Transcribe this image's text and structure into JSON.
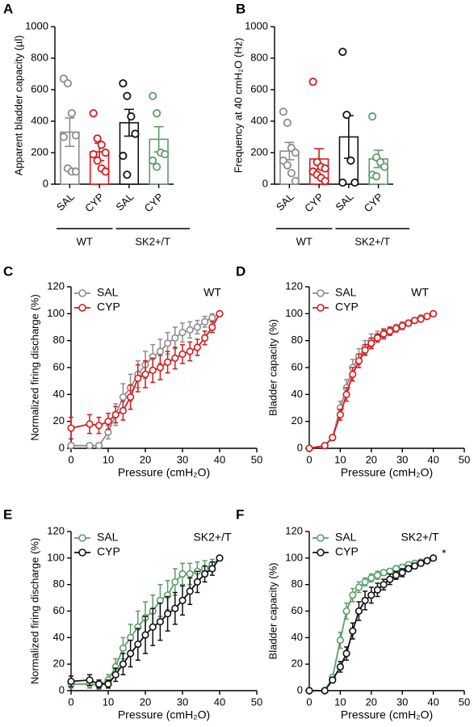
{
  "chart_data": [
    {
      "type": "bar",
      "label": "A",
      "y_label": "Apparent bladder capacity (µl)",
      "categories": [
        "SAL",
        "CYP",
        "SAL",
        "CYP"
      ],
      "groups": [
        "WT",
        "SK2+/T"
      ],
      "values": [
        330,
        205,
        390,
        285
      ],
      "errors": [
        90,
        55,
        85,
        80
      ],
      "colors": [
        "#8c8c8c",
        "#d7191c",
        "#111111",
        "#5a9e6a"
      ],
      "points": [
        [
          670,
          640,
          450,
          310,
          300,
          100,
          80,
          80
        ],
        [
          450,
          290,
          250,
          200,
          190,
          150,
          100,
          80
        ],
        [
          640,
          560,
          430,
          320,
          180,
          60
        ],
        [
          560,
          450,
          200,
          190,
          150,
          110
        ]
      ],
      "ylim": [
        0,
        1000
      ],
      "yticks": [
        0,
        200,
        400,
        600,
        800,
        1000
      ]
    },
    {
      "type": "bar",
      "label": "B",
      "y_label": "Frequency at 40 cmH₂O (Hz)",
      "categories": [
        "SAL",
        "CYP",
        "SAL",
        "CYP"
      ],
      "groups": [
        "WT",
        "SK2+/T"
      ],
      "values": [
        210,
        160,
        300,
        160
      ],
      "errors": [
        55,
        65,
        135,
        55
      ],
      "colors": [
        "#8c8c8c",
        "#d7191c",
        "#111111",
        "#5a9e6a"
      ],
      "points": [
        [
          460,
          390,
          230,
          200,
          150,
          120,
          70,
          20
        ],
        [
          650,
          140,
          110,
          100,
          80,
          60,
          40,
          20
        ],
        [
          840,
          440,
          150,
          10,
          10
        ],
        [
          430,
          170,
          140,
          110,
          60,
          50
        ]
      ],
      "ylim": [
        0,
        1000
      ],
      "yticks": [
        0,
        200,
        400,
        600,
        800,
        1000
      ]
    },
    {
      "type": "line",
      "label": "C",
      "y_label": "Normalized firing discharge (%)",
      "x_label": "Pressure (cmH₂O)",
      "annotations": [
        "WT"
      ],
      "x": [
        0,
        5,
        7.5,
        10,
        12,
        14,
        16,
        18,
        20,
        22,
        24,
        26,
        28,
        30,
        32,
        34,
        36,
        38,
        40
      ],
      "series": [
        {
          "name": "SAL",
          "color": "#8c8c8c",
          "values": [
            2,
            2,
            2,
            12,
            25,
            38,
            45,
            55,
            62,
            68,
            72,
            78,
            82,
            86,
            88,
            90,
            94,
            97,
            100
          ],
          "errors": [
            2,
            2,
            2,
            5,
            8,
            10,
            10,
            10,
            10,
            9,
            9,
            8,
            8,
            7,
            6,
            5,
            4,
            3,
            0
          ]
        },
        {
          "name": "CYP",
          "color": "#d7191c",
          "values": [
            15,
            18,
            17,
            20,
            25,
            28,
            38,
            52,
            55,
            58,
            60,
            64,
            67,
            70,
            72,
            75,
            82,
            90,
            100
          ],
          "errors": [
            8,
            7,
            6,
            6,
            6,
            7,
            9,
            10,
            10,
            9,
            9,
            8,
            8,
            7,
            7,
            6,
            5,
            4,
            0
          ]
        }
      ],
      "xlim": [
        0,
        50
      ],
      "xticks": [
        0,
        10,
        20,
        30,
        40,
        50
      ],
      "ylim": [
        0,
        120
      ],
      "yticks": [
        0,
        20,
        40,
        60,
        80,
        100,
        120
      ]
    },
    {
      "type": "line",
      "label": "D",
      "y_label": "Bladder capacity (%)",
      "x_label": "Pressure (cmH₂O)",
      "annotations": [
        "WT"
      ],
      "x": [
        0,
        5,
        7.5,
        10,
        12,
        14,
        16,
        18,
        20,
        22,
        24,
        26,
        28,
        30,
        32,
        34,
        36,
        38,
        40
      ],
      "series": [
        {
          "name": "SAL",
          "color": "#8c8c8c",
          "values": [
            0,
            2,
            8,
            30,
            45,
            60,
            68,
            75,
            80,
            83,
            85,
            87,
            89,
            91,
            93,
            95,
            97,
            98,
            100
          ],
          "errors": [
            0,
            1,
            2,
            5,
            6,
            6,
            6,
            5,
            5,
            4,
            4,
            3,
            3,
            3,
            2,
            2,
            1,
            1,
            0
          ]
        },
        {
          "name": "CYP",
          "color": "#d7191c",
          "values": [
            0,
            2,
            8,
            25,
            40,
            55,
            65,
            73,
            78,
            82,
            85,
            87,
            89,
            91,
            93,
            95,
            96,
            98,
            100
          ],
          "errors": [
            0,
            1,
            2,
            4,
            5,
            5,
            5,
            4,
            4,
            3,
            3,
            3,
            2,
            2,
            2,
            1,
            1,
            1,
            0
          ]
        }
      ],
      "xlim": [
        0,
        50
      ],
      "xticks": [
        0,
        10,
        20,
        30,
        40,
        50
      ],
      "ylim": [
        0,
        120
      ],
      "yticks": [
        0,
        20,
        40,
        60,
        80,
        100,
        120
      ]
    },
    {
      "type": "line",
      "label": "E",
      "y_label": "Normalized firing discharge (%)",
      "x_label": "Pressure (cmH₂O)",
      "annotations": [
        "SK2+/T"
      ],
      "x": [
        0,
        5,
        7.5,
        10,
        12,
        14,
        16,
        18,
        20,
        22,
        24,
        26,
        28,
        30,
        32,
        34,
        36,
        38,
        40
      ],
      "series": [
        {
          "name": "SAL",
          "color": "#5a9e6a",
          "values": [
            5,
            5,
            4,
            8,
            18,
            32,
            40,
            48,
            55,
            60,
            68,
            72,
            82,
            88,
            88,
            90,
            92,
            95,
            100
          ],
          "errors": [
            3,
            3,
            3,
            4,
            6,
            8,
            10,
            12,
            12,
            12,
            12,
            11,
            10,
            8,
            8,
            7,
            6,
            4,
            0
          ]
        },
        {
          "name": "CYP",
          "color": "#111111",
          "values": [
            7,
            8,
            5,
            5,
            12,
            20,
            28,
            35,
            42,
            48,
            52,
            58,
            62,
            68,
            75,
            82,
            88,
            92,
            100
          ],
          "errors": [
            4,
            4,
            3,
            3,
            5,
            8,
            10,
            12,
            14,
            14,
            14,
            13,
            12,
            11,
            10,
            8,
            6,
            5,
            0
          ]
        }
      ],
      "xlim": [
        0,
        50
      ],
      "xticks": [
        0,
        10,
        20,
        30,
        40,
        50
      ],
      "ylim": [
        0,
        120
      ],
      "yticks": [
        0,
        20,
        40,
        60,
        80,
        100,
        120
      ]
    },
    {
      "type": "line",
      "label": "F",
      "y_label": "Bladder capacity (%)",
      "x_label": "Pressure (cmH₂O)",
      "annotations": [
        "SK2+/T",
        "*"
      ],
      "x": [
        0,
        5,
        7.5,
        10,
        12,
        14,
        16,
        18,
        20,
        22,
        24,
        26,
        28,
        30,
        32,
        34,
        36,
        38,
        40
      ],
      "series": [
        {
          "name": "SAL",
          "color": "#5a9e6a",
          "values": [
            0,
            0,
            10,
            38,
            60,
            72,
            78,
            82,
            85,
            87,
            89,
            90,
            92,
            93,
            95,
            96,
            97,
            98,
            100
          ],
          "errors": [
            0,
            1,
            2,
            6,
            6,
            5,
            4,
            3,
            3,
            3,
            2,
            2,
            2,
            2,
            1,
            1,
            1,
            1,
            0
          ]
        },
        {
          "name": "CYP",
          "color": "#111111",
          "values": [
            0,
            0,
            8,
            18,
            28,
            45,
            60,
            68,
            72,
            76,
            80,
            84,
            87,
            89,
            92,
            94,
            96,
            98,
            100
          ],
          "errors": [
            0,
            1,
            2,
            4,
            5,
            6,
            7,
            7,
            6,
            5,
            4,
            4,
            3,
            3,
            2,
            2,
            1,
            1,
            0
          ]
        }
      ],
      "xlim": [
        0,
        50
      ],
      "xticks": [
        0,
        10,
        20,
        30,
        40,
        50
      ],
      "ylim": [
        0,
        120
      ],
      "yticks": [
        0,
        20,
        40,
        60,
        80,
        100,
        120
      ]
    }
  ]
}
